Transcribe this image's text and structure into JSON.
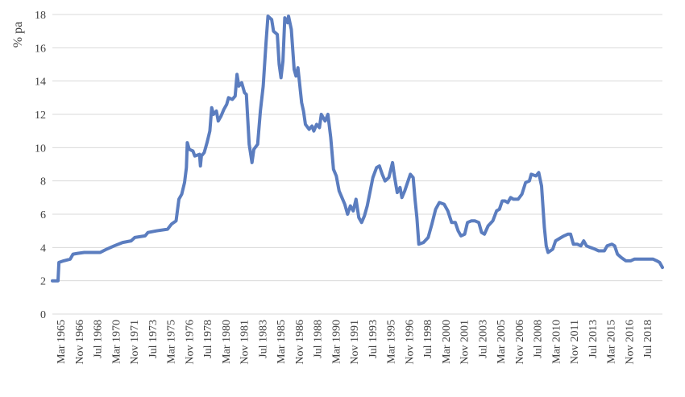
{
  "chart_data": {
    "type": "line",
    "title": "",
    "xlabel": "",
    "ylabel": "% pa",
    "ylim": [
      0,
      18
    ],
    "yticks": [
      0,
      2,
      4,
      6,
      8,
      10,
      12,
      14,
      16,
      18
    ],
    "grid": "horizontal",
    "legend": "none",
    "line_color": "#5B7DBF",
    "grid_color": "#D9D9D9",
    "x_range": [
      "1965-03",
      "2019-06"
    ],
    "xtick_labels": [
      "Mar 1965",
      "Nov 1966",
      "Jul 1968",
      "Mar 1970",
      "Nov 1971",
      "Jul 1973",
      "Mar 1975",
      "Nov 1976",
      "Jul 1978",
      "Mar 1980",
      "Nov 1981",
      "Jul 1983",
      "Mar 1985",
      "Nov 1986",
      "Jul 1988",
      "Mar 1990",
      "Nov 1991",
      "Jul 1993",
      "Mar 1995",
      "Nov 1996",
      "Jul 1998",
      "Mar 2000",
      "Nov 2001",
      "Jul 2003",
      "Mar 2005",
      "Nov 2006",
      "Jul 2008",
      "Mar 2010",
      "Nov 2011",
      "Jul 2013",
      "Mar 2015",
      "Nov 2016",
      "Jul 2018"
    ],
    "series": [
      {
        "values": [
          [
            "1965-03",
            2.0
          ],
          [
            "1965-09",
            2.0
          ],
          [
            "1965-10",
            3.1
          ],
          [
            "1966-03",
            3.2
          ],
          [
            "1966-10",
            3.3
          ],
          [
            "1967-01",
            3.6
          ],
          [
            "1967-06",
            3.65
          ],
          [
            "1968-01",
            3.7
          ],
          [
            "1969-06",
            3.7
          ],
          [
            "1970-01",
            3.9
          ],
          [
            "1970-09",
            4.1
          ],
          [
            "1971-06",
            4.3
          ],
          [
            "1972-03",
            4.4
          ],
          [
            "1972-07",
            4.6
          ],
          [
            "1973-06",
            4.7
          ],
          [
            "1973-09",
            4.9
          ],
          [
            "1974-06",
            5.0
          ],
          [
            "1975-06",
            5.1
          ],
          [
            "1975-10",
            5.4
          ],
          [
            "1976-03",
            5.6
          ],
          [
            "1976-06",
            6.9
          ],
          [
            "1976-09",
            7.2
          ],
          [
            "1976-12",
            7.9
          ],
          [
            "1977-02",
            8.8
          ],
          [
            "1977-03",
            10.3
          ],
          [
            "1977-05",
            9.9
          ],
          [
            "1977-09",
            9.8
          ],
          [
            "1977-11",
            9.5
          ],
          [
            "1978-04",
            9.6
          ],
          [
            "1978-05",
            8.9
          ],
          [
            "1978-06",
            9.5
          ],
          [
            "1978-09",
            9.7
          ],
          [
            "1978-12",
            10.3
          ],
          [
            "1979-03",
            11.0
          ],
          [
            "1979-05",
            12.4
          ],
          [
            "1979-07",
            12.0
          ],
          [
            "1979-10",
            12.2
          ],
          [
            "1979-12",
            11.6
          ],
          [
            "1980-03",
            11.9
          ],
          [
            "1980-06",
            12.3
          ],
          [
            "1980-09",
            12.6
          ],
          [
            "1980-11",
            13.0
          ],
          [
            "1981-03",
            12.9
          ],
          [
            "1981-06",
            13.1
          ],
          [
            "1981-08",
            14.4
          ],
          [
            "1981-10",
            13.7
          ],
          [
            "1982-01",
            13.9
          ],
          [
            "1982-04",
            13.3
          ],
          [
            "1982-06",
            13.2
          ],
          [
            "1982-09",
            10.2
          ],
          [
            "1982-12",
            9.1
          ],
          [
            "1983-02",
            9.9
          ],
          [
            "1983-06",
            10.2
          ],
          [
            "1983-09",
            12.2
          ],
          [
            "1983-12",
            13.7
          ],
          [
            "1984-03",
            16.3
          ],
          [
            "1984-05",
            17.9
          ],
          [
            "1984-09",
            17.7
          ],
          [
            "1984-11",
            17.0
          ],
          [
            "1985-03",
            16.8
          ],
          [
            "1985-05",
            15.0
          ],
          [
            "1985-07",
            14.2
          ],
          [
            "1985-09",
            15.2
          ],
          [
            "1985-11",
            17.8
          ],
          [
            "1986-02",
            17.5
          ],
          [
            "1986-03",
            17.9
          ],
          [
            "1986-06",
            17.1
          ],
          [
            "1986-09",
            14.7
          ],
          [
            "1986-11",
            14.3
          ],
          [
            "1987-01",
            14.8
          ],
          [
            "1987-05",
            12.7
          ],
          [
            "1987-07",
            12.2
          ],
          [
            "1987-09",
            11.4
          ],
          [
            "1988-01",
            11.1
          ],
          [
            "1988-04",
            11.3
          ],
          [
            "1988-06",
            11.0
          ],
          [
            "1988-09",
            11.4
          ],
          [
            "1988-12",
            11.2
          ],
          [
            "1989-02",
            12.0
          ],
          [
            "1989-06",
            11.6
          ],
          [
            "1989-09",
            12.0
          ],
          [
            "1989-12",
            10.6
          ],
          [
            "1990-03",
            8.7
          ],
          [
            "1990-06",
            8.3
          ],
          [
            "1990-09",
            7.4
          ],
          [
            "1990-12",
            7.0
          ],
          [
            "1991-03",
            6.6
          ],
          [
            "1991-06",
            6.0
          ],
          [
            "1991-09",
            6.5
          ],
          [
            "1991-12",
            6.2
          ],
          [
            "1992-03",
            6.9
          ],
          [
            "1992-06",
            5.8
          ],
          [
            "1992-09",
            5.5
          ],
          [
            "1992-12",
            5.9
          ],
          [
            "1993-03",
            6.5
          ],
          [
            "1993-09",
            8.2
          ],
          [
            "1994-01",
            8.8
          ],
          [
            "1994-04",
            8.9
          ],
          [
            "1994-07",
            8.4
          ],
          [
            "1994-10",
            8.0
          ],
          [
            "1995-02",
            8.2
          ],
          [
            "1995-06",
            9.1
          ],
          [
            "1995-08",
            8.3
          ],
          [
            "1995-11",
            7.3
          ],
          [
            "1996-02",
            7.6
          ],
          [
            "1996-04",
            7.0
          ],
          [
            "1996-07",
            7.4
          ],
          [
            "1996-10",
            7.9
          ],
          [
            "1997-01",
            8.4
          ],
          [
            "1997-04",
            8.2
          ],
          [
            "1997-06",
            6.9
          ],
          [
            "1997-08",
            5.8
          ],
          [
            "1997-10",
            4.2
          ],
          [
            "1998-03",
            4.3
          ],
          [
            "1998-08",
            4.6
          ],
          [
            "1998-12",
            5.4
          ],
          [
            "1999-04",
            6.3
          ],
          [
            "1999-08",
            6.7
          ],
          [
            "2000-01",
            6.6
          ],
          [
            "2000-05",
            6.2
          ],
          [
            "2000-09",
            5.5
          ],
          [
            "2001-01",
            5.5
          ],
          [
            "2001-04",
            5.0
          ],
          [
            "2001-07",
            4.7
          ],
          [
            "2001-11",
            4.8
          ],
          [
            "2002-02",
            5.5
          ],
          [
            "2002-06",
            5.6
          ],
          [
            "2002-10",
            5.6
          ],
          [
            "2003-02",
            5.5
          ],
          [
            "2003-05",
            4.9
          ],
          [
            "2003-08",
            4.8
          ],
          [
            "2003-12",
            5.3
          ],
          [
            "2004-05",
            5.6
          ],
          [
            "2004-09",
            6.2
          ],
          [
            "2004-12",
            6.3
          ],
          [
            "2005-03",
            6.8
          ],
          [
            "2005-06",
            6.8
          ],
          [
            "2005-09",
            6.7
          ],
          [
            "2005-12",
            7.0
          ],
          [
            "2006-03",
            6.9
          ],
          [
            "2006-08",
            6.9
          ],
          [
            "2006-12",
            7.2
          ],
          [
            "2007-04",
            7.9
          ],
          [
            "2007-08",
            8.0
          ],
          [
            "2007-10",
            8.4
          ],
          [
            "2008-03",
            8.3
          ],
          [
            "2008-06",
            8.5
          ],
          [
            "2008-09",
            7.7
          ],
          [
            "2008-12",
            5.2
          ],
          [
            "2009-02",
            4.1
          ],
          [
            "2009-04",
            3.7
          ],
          [
            "2009-09",
            3.9
          ],
          [
            "2009-12",
            4.4
          ],
          [
            "2010-03",
            4.5
          ],
          [
            "2010-06",
            4.6
          ],
          [
            "2010-09",
            4.7
          ],
          [
            "2011-01",
            4.8
          ],
          [
            "2011-04",
            4.8
          ],
          [
            "2011-07",
            4.2
          ],
          [
            "2011-11",
            4.2
          ],
          [
            "2012-03",
            4.1
          ],
          [
            "2012-06",
            4.4
          ],
          [
            "2012-09",
            4.1
          ],
          [
            "2013-01",
            4.0
          ],
          [
            "2013-06",
            3.9
          ],
          [
            "2013-10",
            3.8
          ],
          [
            "2014-04",
            3.8
          ],
          [
            "2014-07",
            4.1
          ],
          [
            "2014-12",
            4.2
          ],
          [
            "2015-03",
            4.1
          ],
          [
            "2015-06",
            3.6
          ],
          [
            "2015-10",
            3.4
          ],
          [
            "2016-03",
            3.2
          ],
          [
            "2016-08",
            3.2
          ],
          [
            "2016-12",
            3.3
          ],
          [
            "2017-06",
            3.3
          ],
          [
            "2018-01",
            3.3
          ],
          [
            "2018-08",
            3.3
          ],
          [
            "2018-12",
            3.2
          ],
          [
            "2019-03",
            3.1
          ],
          [
            "2019-06",
            2.8
          ]
        ]
      }
    ]
  }
}
